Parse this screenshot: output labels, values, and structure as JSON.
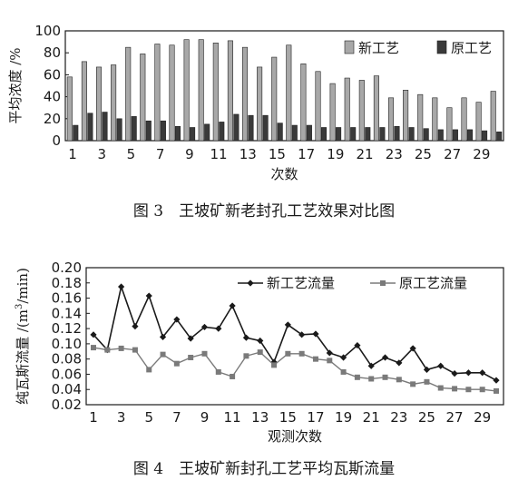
{
  "figures": [
    {
      "caption": "图 3　王坡矿新老封孔工艺效果对比图",
      "chart_data": {
        "type": "bar",
        "xlabel": "次数",
        "ylabel": "平均浓度 /%",
        "ylim": [
          0,
          100
        ],
        "yticks": [
          "0",
          "20",
          "40",
          "60",
          "80",
          "100"
        ],
        "xticks": [
          "1",
          "3",
          "5",
          "7",
          "9",
          "11",
          "13",
          "15",
          "17",
          "19",
          "21",
          "23",
          "25",
          "27",
          "29"
        ],
        "x": [
          1,
          2,
          3,
          4,
          5,
          6,
          7,
          8,
          9,
          10,
          11,
          12,
          13,
          14,
          15,
          16,
          17,
          18,
          19,
          20,
          21,
          22,
          23,
          24,
          25,
          26,
          27,
          28,
          29,
          30
        ],
        "legend_position": "top-right",
        "series": [
          {
            "name": "新工艺",
            "color": "#a8a8a8",
            "values": [
              58,
              72,
              67,
              69,
              85,
              79,
              88,
              87,
              92,
              92,
              89,
              91,
              85,
              67,
              76,
              87,
              70,
              63,
              52,
              57,
              55,
              59,
              39,
              46,
              42,
              39,
              30,
              39,
              35,
              45
            ]
          },
          {
            "name": "原工艺",
            "color": "#3a3a3a",
            "values": [
              14,
              25,
              26,
              20,
              22,
              18,
              18,
              13,
              12,
              15,
              17,
              24,
              23,
              23,
              16,
              14,
              14,
              12,
              12,
              12,
              12,
              12,
              13,
              12,
              11,
              10,
              10,
              10,
              9,
              8
            ]
          }
        ]
      }
    },
    {
      "caption": "图 4　王坡矿新封孔工艺平均瓦斯流量",
      "chart_data": {
        "type": "line",
        "xlabel": "观测次数",
        "ylabel_prefix": "纯瓦斯流量 /(m",
        "ylabel_sup": "3",
        "ylabel_suffix": "/min)",
        "ylim": [
          0.02,
          0.2
        ],
        "yticks": [
          "0.02",
          "0.04",
          "0.06",
          "0.08",
          "0.10",
          "0.12",
          "0.14",
          "0.16",
          "0.18",
          "0.20"
        ],
        "xticks": [
          "1",
          "3",
          "5",
          "7",
          "9",
          "11",
          "13",
          "15",
          "17",
          "19",
          "21",
          "23",
          "25",
          "27",
          "29"
        ],
        "x": [
          1,
          2,
          3,
          4,
          5,
          6,
          7,
          8,
          9,
          10,
          11,
          12,
          13,
          14,
          15,
          16,
          17,
          18,
          19,
          20,
          21,
          22,
          23,
          24,
          25,
          26,
          27,
          28,
          29,
          30
        ],
        "legend_position": "top-right",
        "series": [
          {
            "name": "新工艺流量",
            "color": "#1a1a1a",
            "marker": "diamond",
            "values": [
              0.112,
              0.092,
              0.175,
              0.123,
              0.163,
              0.109,
              0.132,
              0.107,
              0.122,
              0.12,
              0.15,
              0.108,
              0.104,
              0.076,
              0.125,
              0.112,
              0.113,
              0.088,
              0.082,
              0.098,
              0.071,
              0.082,
              0.075,
              0.094,
              0.066,
              0.071,
              0.061,
              0.062,
              0.062,
              0.052
            ]
          },
          {
            "name": "原工艺流量",
            "color": "#7a7a7a",
            "marker": "square",
            "values": [
              0.095,
              0.092,
              0.094,
              0.092,
              0.066,
              0.086,
              0.074,
              0.082,
              0.087,
              0.063,
              0.057,
              0.084,
              0.089,
              0.072,
              0.087,
              0.087,
              0.08,
              0.078,
              0.063,
              0.056,
              0.054,
              0.056,
              0.053,
              0.047,
              0.05,
              0.042,
              0.041,
              0.04,
              0.04,
              0.038
            ]
          }
        ]
      }
    }
  ]
}
